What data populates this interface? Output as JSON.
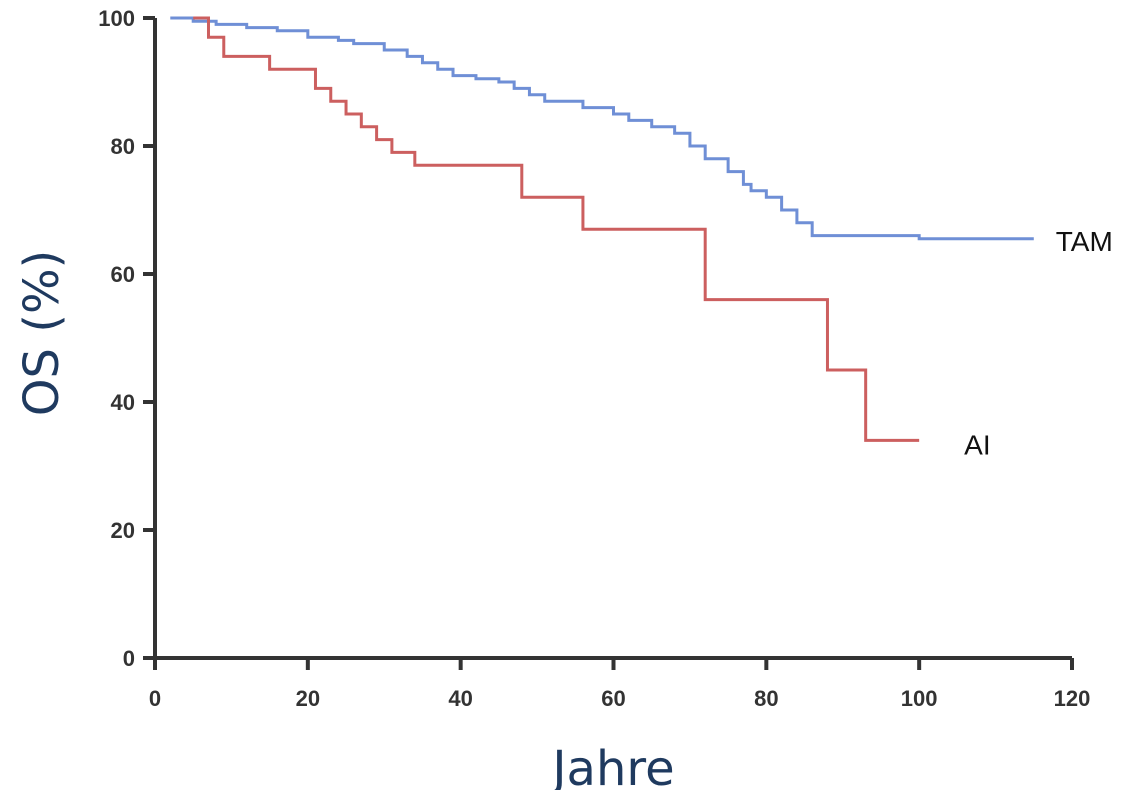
{
  "chart_data": {
    "type": "line",
    "title": "",
    "xlabel": "Jahre",
    "ylabel": "OS (%)",
    "xlim": [
      0,
      120
    ],
    "ylim": [
      0,
      100
    ],
    "x_ticks": [
      "0",
      "20",
      "40",
      "60",
      "80",
      "100",
      "120"
    ],
    "y_ticks": [
      "0",
      "20",
      "40",
      "60",
      "80",
      "100"
    ],
    "grid": false,
    "step": true,
    "series": [
      {
        "name": "TAM",
        "color": "#6f8fd6",
        "points": [
          [
            2,
            100
          ],
          [
            5,
            99.5
          ],
          [
            8,
            99
          ],
          [
            12,
            98.5
          ],
          [
            16,
            98
          ],
          [
            20,
            97
          ],
          [
            24,
            96.5
          ],
          [
            26,
            96
          ],
          [
            30,
            95
          ],
          [
            33,
            94
          ],
          [
            35,
            93
          ],
          [
            37,
            92
          ],
          [
            39,
            91
          ],
          [
            42,
            90.5
          ],
          [
            45,
            90
          ],
          [
            47,
            89
          ],
          [
            49,
            88
          ],
          [
            51,
            87
          ],
          [
            56,
            86
          ],
          [
            60,
            85
          ],
          [
            62,
            84
          ],
          [
            65,
            83
          ],
          [
            68,
            82
          ],
          [
            70,
            80
          ],
          [
            72,
            78
          ],
          [
            75,
            76
          ],
          [
            77,
            74
          ],
          [
            78,
            73
          ],
          [
            80,
            72
          ],
          [
            82,
            70
          ],
          [
            84,
            68
          ],
          [
            86,
            66
          ],
          [
            100,
            65.5
          ],
          [
            115,
            65.5
          ]
        ]
      },
      {
        "name": "AI",
        "color": "#cc5f5f",
        "points": [
          [
            5,
            100
          ],
          [
            7,
            97
          ],
          [
            9,
            94
          ],
          [
            15,
            92
          ],
          [
            21,
            89
          ],
          [
            23,
            87
          ],
          [
            25,
            85
          ],
          [
            27,
            83
          ],
          [
            29,
            81
          ],
          [
            31,
            79
          ],
          [
            34,
            77
          ],
          [
            48,
            72
          ],
          [
            56,
            67
          ],
          [
            72,
            56
          ],
          [
            88,
            45
          ],
          [
            93,
            34
          ],
          [
            100,
            34
          ]
        ]
      }
    ]
  }
}
